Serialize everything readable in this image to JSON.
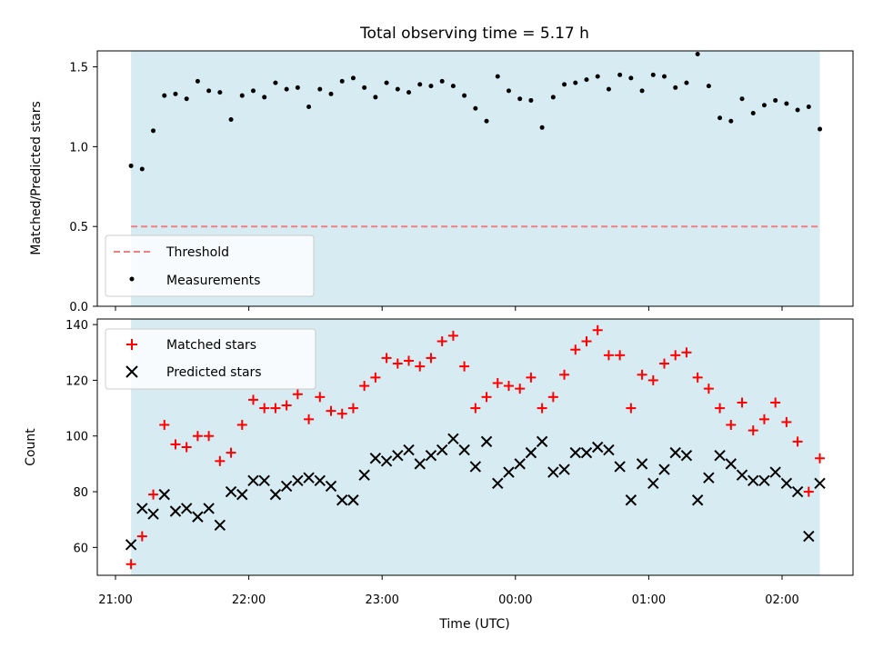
{
  "chart_data": {
    "type": "scatter",
    "title": "Total observing time = 5.17 h",
    "xlabel": "Time (UTC)",
    "x_tick_labels": [
      "21:00",
      "22:00",
      "23:00",
      "00:00",
      "01:00",
      "02:00"
    ],
    "colors": {
      "observing_band": "#add8e6",
      "threshold": "#f08080",
      "measurements": "#000000",
      "matched": "#ff0000",
      "predicted": "#000000"
    },
    "observing_window": [
      "21:07",
      "02:17"
    ],
    "top_panel": {
      "ylabel": "Matched/Predicted stars",
      "ylim": [
        0,
        1.6
      ],
      "y_ticks": [
        0.0,
        0.5,
        1.0,
        1.5
      ],
      "y_tick_labels": [
        "0.0",
        "0.5",
        "1.0",
        "1.5"
      ],
      "legend": {
        "position": "lower left",
        "entries": [
          "Threshold",
          "Measurements"
        ]
      },
      "threshold": 0.5,
      "series": [
        {
          "name": "Measurements",
          "points": [
            [
              "21:07",
              0.88
            ],
            [
              "21:12",
              0.86
            ],
            [
              "21:17",
              1.1
            ],
            [
              "21:22",
              1.32
            ],
            [
              "21:27",
              1.33
            ],
            [
              "21:32",
              1.3
            ],
            [
              "21:37",
              1.41
            ],
            [
              "21:42",
              1.35
            ],
            [
              "21:47",
              1.34
            ],
            [
              "21:52",
              1.17
            ],
            [
              "21:57",
              1.32
            ],
            [
              "22:02",
              1.35
            ],
            [
              "22:07",
              1.31
            ],
            [
              "22:12",
              1.4
            ],
            [
              "22:17",
              1.36
            ],
            [
              "22:22",
              1.37
            ],
            [
              "22:27",
              1.25
            ],
            [
              "22:32",
              1.36
            ],
            [
              "22:37",
              1.33
            ],
            [
              "22:42",
              1.41
            ],
            [
              "22:47",
              1.43
            ],
            [
              "22:52",
              1.37
            ],
            [
              "22:57",
              1.31
            ],
            [
              "23:02",
              1.4
            ],
            [
              "23:07",
              1.36
            ],
            [
              "23:12",
              1.34
            ],
            [
              "23:17",
              1.39
            ],
            [
              "23:22",
              1.38
            ],
            [
              "23:27",
              1.41
            ],
            [
              "23:32",
              1.38
            ],
            [
              "23:37",
              1.32
            ],
            [
              "23:42",
              1.24
            ],
            [
              "23:47",
              1.16
            ],
            [
              "23:52",
              1.44
            ],
            [
              "23:57",
              1.35
            ],
            [
              "00:02",
              1.3
            ],
            [
              "00:07",
              1.29
            ],
            [
              "00:12",
              1.12
            ],
            [
              "00:17",
              1.31
            ],
            [
              "00:22",
              1.39
            ],
            [
              "00:27",
              1.4
            ],
            [
              "00:32",
              1.42
            ],
            [
              "00:37",
              1.44
            ],
            [
              "00:42",
              1.36
            ],
            [
              "00:47",
              1.45
            ],
            [
              "00:52",
              1.43
            ],
            [
              "00:57",
              1.35
            ],
            [
              "01:02",
              1.45
            ],
            [
              "01:07",
              1.44
            ],
            [
              "01:12",
              1.37
            ],
            [
              "01:17",
              1.4
            ],
            [
              "01:22",
              1.58
            ],
            [
              "01:27",
              1.38
            ],
            [
              "01:32",
              1.18
            ],
            [
              "01:37",
              1.16
            ],
            [
              "01:42",
              1.3
            ],
            [
              "01:47",
              1.21
            ],
            [
              "01:52",
              1.26
            ],
            [
              "01:57",
              1.29
            ],
            [
              "02:02",
              1.27
            ],
            [
              "02:07",
              1.23
            ],
            [
              "02:12",
              1.25
            ],
            [
              "02:17",
              1.11
            ]
          ]
        }
      ]
    },
    "bottom_panel": {
      "ylabel": "Count",
      "ylim": [
        50,
        142
      ],
      "y_ticks": [
        60,
        80,
        100,
        120,
        140
      ],
      "y_tick_labels": [
        "60",
        "80",
        "100",
        "120",
        "140"
      ],
      "legend": {
        "position": "upper left",
        "entries": [
          "Matched stars",
          "Predicted stars"
        ]
      },
      "series": [
        {
          "name": "Matched stars",
          "points": [
            [
              "21:07",
              54
            ],
            [
              "21:12",
              64
            ],
            [
              "21:17",
              79
            ],
            [
              "21:22",
              104
            ],
            [
              "21:27",
              97
            ],
            [
              "21:32",
              96
            ],
            [
              "21:37",
              100
            ],
            [
              "21:42",
              100
            ],
            [
              "21:47",
              91
            ],
            [
              "21:52",
              94
            ],
            [
              "21:57",
              104
            ],
            [
              "22:02",
              113
            ],
            [
              "22:07",
              110
            ],
            [
              "22:12",
              110
            ],
            [
              "22:17",
              111
            ],
            [
              "22:22",
              115
            ],
            [
              "22:27",
              106
            ],
            [
              "22:32",
              114
            ],
            [
              "22:37",
              109
            ],
            [
              "22:42",
              108
            ],
            [
              "22:47",
              110
            ],
            [
              "22:52",
              118
            ],
            [
              "22:57",
              121
            ],
            [
              "23:02",
              128
            ],
            [
              "23:07",
              126
            ],
            [
              "23:12",
              127
            ],
            [
              "23:17",
              125
            ],
            [
              "23:22",
              128
            ],
            [
              "23:27",
              134
            ],
            [
              "23:32",
              136
            ],
            [
              "23:37",
              125
            ],
            [
              "23:42",
              110
            ],
            [
              "23:47",
              114
            ],
            [
              "23:52",
              119
            ],
            [
              "23:57",
              118
            ],
            [
              "00:02",
              117
            ],
            [
              "00:07",
              121
            ],
            [
              "00:12",
              110
            ],
            [
              "00:17",
              114
            ],
            [
              "00:22",
              122
            ],
            [
              "00:27",
              131
            ],
            [
              "00:32",
              134
            ],
            [
              "00:37",
              138
            ],
            [
              "00:42",
              129
            ],
            [
              "00:47",
              129
            ],
            [
              "00:52",
              110
            ],
            [
              "00:57",
              122
            ],
            [
              "01:02",
              120
            ],
            [
              "01:07",
              126
            ],
            [
              "01:12",
              129
            ],
            [
              "01:17",
              130
            ],
            [
              "01:22",
              121
            ],
            [
              "01:27",
              117
            ],
            [
              "01:32",
              110
            ],
            [
              "01:37",
              104
            ],
            [
              "01:42",
              112
            ],
            [
              "01:47",
              102
            ],
            [
              "01:52",
              106
            ],
            [
              "01:57",
              112
            ],
            [
              "02:02",
              105
            ],
            [
              "02:07",
              98
            ],
            [
              "02:12",
              80
            ],
            [
              "02:17",
              92
            ]
          ]
        },
        {
          "name": "Predicted stars",
          "points": [
            [
              "21:07",
              61
            ],
            [
              "21:12",
              74
            ],
            [
              "21:17",
              72
            ],
            [
              "21:22",
              79
            ],
            [
              "21:27",
              73
            ],
            [
              "21:32",
              74
            ],
            [
              "21:37",
              71
            ],
            [
              "21:42",
              74
            ],
            [
              "21:47",
              68
            ],
            [
              "21:52",
              80
            ],
            [
              "21:57",
              79
            ],
            [
              "22:02",
              84
            ],
            [
              "22:07",
              84
            ],
            [
              "22:12",
              79
            ],
            [
              "22:17",
              82
            ],
            [
              "22:22",
              84
            ],
            [
              "22:27",
              85
            ],
            [
              "22:32",
              84
            ],
            [
              "22:37",
              82
            ],
            [
              "22:42",
              77
            ],
            [
              "22:47",
              77
            ],
            [
              "22:52",
              86
            ],
            [
              "22:57",
              92
            ],
            [
              "23:02",
              91
            ],
            [
              "23:07",
              93
            ],
            [
              "23:12",
              95
            ],
            [
              "23:17",
              90
            ],
            [
              "23:22",
              93
            ],
            [
              "23:27",
              95
            ],
            [
              "23:32",
              99
            ],
            [
              "23:37",
              95
            ],
            [
              "23:42",
              89
            ],
            [
              "23:47",
              98
            ],
            [
              "23:52",
              83
            ],
            [
              "23:57",
              87
            ],
            [
              "00:02",
              90
            ],
            [
              "00:07",
              94
            ],
            [
              "00:12",
              98
            ],
            [
              "00:17",
              87
            ],
            [
              "00:22",
              88
            ],
            [
              "00:27",
              94
            ],
            [
              "00:32",
              94
            ],
            [
              "00:37",
              96
            ],
            [
              "00:42",
              95
            ],
            [
              "00:47",
              89
            ],
            [
              "00:52",
              77
            ],
            [
              "00:57",
              90
            ],
            [
              "01:02",
              83
            ],
            [
              "01:07",
              88
            ],
            [
              "01:12",
              94
            ],
            [
              "01:17",
              93
            ],
            [
              "01:22",
              77
            ],
            [
              "01:27",
              85
            ],
            [
              "01:32",
              93
            ],
            [
              "01:37",
              90
            ],
            [
              "01:42",
              86
            ],
            [
              "01:47",
              84
            ],
            [
              "01:52",
              84
            ],
            [
              "01:57",
              87
            ],
            [
              "02:02",
              83
            ],
            [
              "02:07",
              80
            ],
            [
              "02:12",
              64
            ],
            [
              "02:17",
              83
            ]
          ]
        }
      ]
    }
  }
}
